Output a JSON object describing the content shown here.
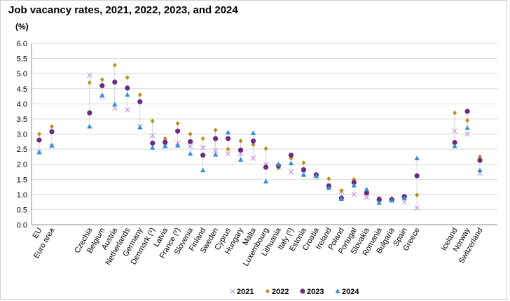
{
  "chart_data": {
    "type": "scatter",
    "title": "Job vacancy rates, 2021, 2022, 2023, and 2024",
    "unit": "(%)",
    "ylim": [
      0,
      6
    ],
    "ytick_step": 0.5,
    "grid": true,
    "legend": "bottom",
    "categories": [
      "EU",
      "Euro area",
      "Czechia",
      "Belgium",
      "Austria",
      "Netherlands",
      "Germany",
      "Denmark (¹)",
      "Latvia",
      "France (²)",
      "Slovenia",
      "Finland",
      "Sweden",
      "Cyprus",
      "Hungary",
      "Malta",
      "Luxembourg",
      "Lithuania",
      "Italy (²)",
      "Estonia",
      "Croatia",
      "Ireland",
      "Poland",
      "Portugal",
      "Slovakia",
      "Romania",
      "Bulgaria",
      "Spain",
      "Greece",
      "Iceland",
      "Norway",
      "Switzerland"
    ],
    "groups": [
      [
        "EU",
        "Euro area"
      ],
      [
        "Czechia",
        "Belgium",
        "Austria",
        "Netherlands",
        "Germany",
        "Denmark (¹)",
        "Latvia",
        "France (²)",
        "Slovenia",
        "Finland",
        "Sweden",
        "Cyprus",
        "Hungary",
        "Malta",
        "Luxembourg",
        "Lithuania",
        "Italy (²)",
        "Estonia",
        "Croatia",
        "Ireland",
        "Poland",
        "Portugal",
        "Slovakia",
        "Romania",
        "Bulgaria",
        "Spain",
        "Greece"
      ],
      [
        "Iceland",
        "Norway",
        "Switzerland"
      ]
    ],
    "series": [
      {
        "name": "2021",
        "marker": "x",
        "color": "#c38fe0",
        "values": [
          2.4,
          2.6,
          4.95,
          4.25,
          3.85,
          3.8,
          3.25,
          2.95,
          2.6,
          2.7,
          2.6,
          2.55,
          2.45,
          2.35,
          2.35,
          2.2,
          2.0,
          1.9,
          1.75,
          1.7,
          1.6,
          1.3,
          1.1,
          1.0,
          0.9,
          0.85,
          0.8,
          0.75,
          0.55,
          3.1,
          3.0,
          1.7
        ]
      },
      {
        "name": "2022",
        "marker": "diamond",
        "color": "#b8901e",
        "values": [
          3.0,
          3.25,
          4.7,
          4.8,
          5.28,
          4.87,
          4.3,
          3.43,
          2.85,
          3.35,
          3.0,
          2.85,
          3.13,
          2.5,
          2.77,
          2.65,
          2.52,
          1.88,
          2.2,
          2.05,
          1.6,
          1.52,
          1.12,
          1.5,
          1.05,
          0.88,
          0.87,
          0.88,
          0.98,
          3.7,
          3.45,
          2.25
        ]
      },
      {
        "name": "2023",
        "marker": "circle",
        "color": "#6a2a83",
        "values": [
          2.8,
          3.08,
          3.7,
          4.6,
          4.72,
          4.52,
          4.07,
          2.7,
          2.73,
          3.1,
          2.75,
          2.3,
          2.85,
          2.85,
          2.47,
          2.77,
          1.9,
          1.95,
          2.3,
          1.82,
          1.65,
          1.28,
          0.88,
          1.4,
          1.05,
          0.83,
          0.83,
          0.93,
          1.62,
          2.72,
          3.75,
          2.13
        ]
      },
      {
        "name": "2024",
        "marker": "triangle",
        "color": "#2f8fd8",
        "values": [
          2.4,
          2.62,
          3.25,
          4.28,
          3.98,
          4.3,
          3.22,
          2.55,
          2.6,
          2.62,
          2.35,
          1.8,
          2.32,
          3.05,
          2.15,
          3.03,
          1.43,
          2.0,
          2.03,
          1.65,
          1.62,
          1.22,
          0.85,
          1.3,
          1.17,
          0.72,
          0.8,
          0.88,
          2.2,
          2.6,
          3.2,
          1.8
        ]
      }
    ]
  }
}
